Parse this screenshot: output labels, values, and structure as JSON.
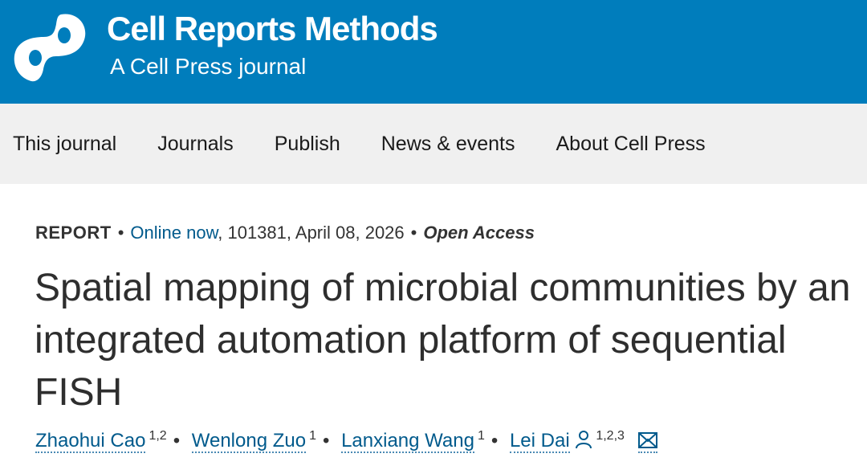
{
  "header": {
    "journal_title": "Cell Reports Methods",
    "subtitle": "A Cell Press journal",
    "brand_color": "#007dbc",
    "logo": "cell-press-logo"
  },
  "nav": {
    "items": [
      "This journal",
      "Journals",
      "Publish",
      "News & events",
      "About Cell Press"
    ]
  },
  "article": {
    "type": "REPORT",
    "online": "Online now",
    "details": ", 101381, April 08, 2026",
    "access": "Open Access",
    "title": "Spatial mapping of microbial communities by an integrated automation platform of sequential FISH",
    "authors": [
      {
        "name": "Zhaohui Cao",
        "aff": "1,2"
      },
      {
        "name": "Wenlong Zuo",
        "aff": "1"
      },
      {
        "name": "Lanxiang Wang",
        "aff": "1"
      },
      {
        "name": "Lei Dai",
        "aff": "1,2,3",
        "icons": [
          "person-icon",
          "email-icon"
        ]
      }
    ]
  }
}
